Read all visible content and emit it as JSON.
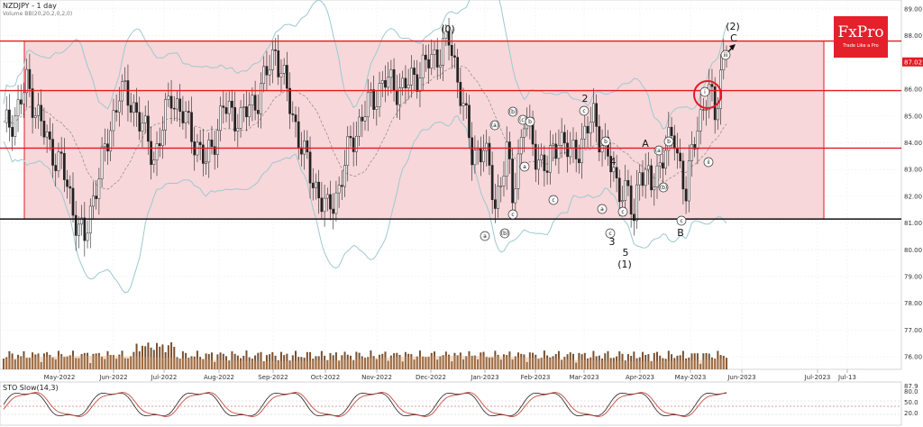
{
  "header": {
    "title": "NZDJPY - 1 day",
    "subtitle": "Volume  BB(20,20,2,0,2,0)",
    "osc_label": "STO Slow(14,3)"
  },
  "logo": {
    "name": "FxPro",
    "tagline": "Trade Like a Pro"
  },
  "colors": {
    "up": "#3a9a3a",
    "down": "#c0202a",
    "band": "#9ec9cf",
    "zone_fill": "#f7d7da",
    "line": "#e21b23",
    "volume": "#7a5030",
    "vol_ma": "#d9a070",
    "osc1": "#222222",
    "osc2": "#c0392b"
  },
  "chart_data": {
    "type": "candlestick",
    "title": "NZDJPY - 1 day",
    "ylim": [
      75.7,
      89.2
    ],
    "y_ticks": [
      "89.00",
      "88.00",
      "87.02",
      "86.00",
      "85.00",
      "84.00",
      "83.00",
      "82.00",
      "81.00",
      "80.00",
      "79.00",
      "78.00",
      "77.00",
      "76.00"
    ],
    "current_price": "87.02",
    "x_months": [
      "May-2022",
      "Jun-2022",
      "Jul-2022",
      "Aug-2022",
      "Sep-2022",
      "Oct-2022",
      "Nov-2022",
      "Dec-2022",
      "Jan-2023",
      "Feb-2023",
      "Mar-2023",
      "Apr-2023",
      "May-2023",
      "Jun-2023",
      "Jul-2023",
      "Jul-13"
    ],
    "levels": {
      "resistance": 87.8,
      "mid": 85.95,
      "support_red": 83.8,
      "support_black": 81.15
    },
    "zone": {
      "top": 87.8,
      "bottom": 81.15
    },
    "close_path": [
      {
        "x": 0,
        "y": 84.5
      },
      {
        "x": 4,
        "y": 85.0
      },
      {
        "x": 8,
        "y": 86.2
      },
      {
        "x": 12,
        "y": 85.0
      },
      {
        "x": 16,
        "y": 83.8
      },
      {
        "x": 20,
        "y": 83.2
      },
      {
        "x": 24,
        "y": 81.5
      },
      {
        "x": 28,
        "y": 80.3
      },
      {
        "x": 32,
        "y": 82.5
      },
      {
        "x": 36,
        "y": 84.0
      },
      {
        "x": 40,
        "y": 86.0
      },
      {
        "x": 46,
        "y": 85.2
      },
      {
        "x": 52,
        "y": 83.4
      },
      {
        "x": 58,
        "y": 85.8
      },
      {
        "x": 64,
        "y": 84.6
      },
      {
        "x": 70,
        "y": 83.2
      },
      {
        "x": 76,
        "y": 85.3
      },
      {
        "x": 82,
        "y": 84.9
      },
      {
        "x": 88,
        "y": 85.7
      },
      {
        "x": 94,
        "y": 87.5
      },
      {
        "x": 100,
        "y": 85.0
      },
      {
        "x": 106,
        "y": 82.8
      },
      {
        "x": 112,
        "y": 81.4
      },
      {
        "x": 116,
        "y": 82.3
      },
      {
        "x": 120,
        "y": 84.0
      },
      {
        "x": 126,
        "y": 85.4
      },
      {
        "x": 132,
        "y": 86.3
      },
      {
        "x": 138,
        "y": 86.0
      },
      {
        "x": 144,
        "y": 86.7
      },
      {
        "x": 150,
        "y": 87.3
      },
      {
        "x": 154,
        "y": 87.8
      },
      {
        "x": 158,
        "y": 86.0
      },
      {
        "x": 162,
        "y": 83.5
      },
      {
        "x": 166,
        "y": 83.9
      },
      {
        "x": 170,
        "y": 81.7
      },
      {
        "x": 174,
        "y": 83.6
      },
      {
        "x": 176,
        "y": 82.0
      },
      {
        "x": 180,
        "y": 84.9
      },
      {
        "x": 184,
        "y": 83.6
      },
      {
        "x": 188,
        "y": 83.0
      },
      {
        "x": 192,
        "y": 84.3
      },
      {
        "x": 196,
        "y": 83.5
      },
      {
        "x": 200,
        "y": 84.0
      },
      {
        "x": 204,
        "y": 85.0
      },
      {
        "x": 208,
        "y": 83.7
      },
      {
        "x": 212,
        "y": 82.5
      },
      {
        "x": 216,
        "y": 82.0
      },
      {
        "x": 218,
        "y": 81.1
      },
      {
        "x": 220,
        "y": 83.2
      },
      {
        "x": 224,
        "y": 82.3
      },
      {
        "x": 228,
        "y": 83.6
      },
      {
        "x": 232,
        "y": 84.2
      },
      {
        "x": 236,
        "y": 82.1
      },
      {
        "x": 240,
        "y": 84.8
      },
      {
        "x": 242,
        "y": 85.3
      },
      {
        "x": 244,
        "y": 85.9
      },
      {
        "x": 246,
        "y": 85.0
      },
      {
        "x": 248,
        "y": 86.7
      },
      {
        "x": 250,
        "y": 87.6
      }
    ],
    "wave_labels": [
      "(0)",
      "(2)",
      "C",
      "2",
      "(a)",
      "(b)",
      "(c)",
      "a",
      "b",
      "c",
      "A",
      "B",
      "3",
      "4",
      "5",
      "(1)",
      "i",
      "ii",
      "iii"
    ]
  }
}
